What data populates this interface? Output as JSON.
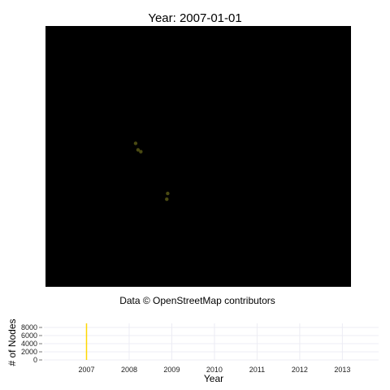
{
  "title": "Year: 2007-01-01",
  "caption": "Data © OpenStreetMap contributors",
  "map": {
    "background": "#000000",
    "point_color": "#4a4a12",
    "points": [
      {
        "x": 0.295,
        "y": 0.45
      },
      {
        "x": 0.303,
        "y": 0.475
      },
      {
        "x": 0.312,
        "y": 0.482
      },
      {
        "x": 0.4,
        "y": 0.642
      },
      {
        "x": 0.397,
        "y": 0.664
      }
    ]
  },
  "chart_data": {
    "type": "line",
    "xlabel": "Year",
    "ylabel": "# of Nodes",
    "x_ticks": [
      "2007",
      "2008",
      "2009",
      "2010",
      "2011",
      "2012",
      "2013"
    ],
    "y_ticks": [
      "0",
      "2000",
      "4000",
      "6000",
      "8000"
    ],
    "ylim": [
      0,
      9000
    ],
    "xlim": [
      2006.0,
      2013.85
    ],
    "current_year": 2007.0,
    "current_marker_color": "#ffd700",
    "grid": true
  }
}
